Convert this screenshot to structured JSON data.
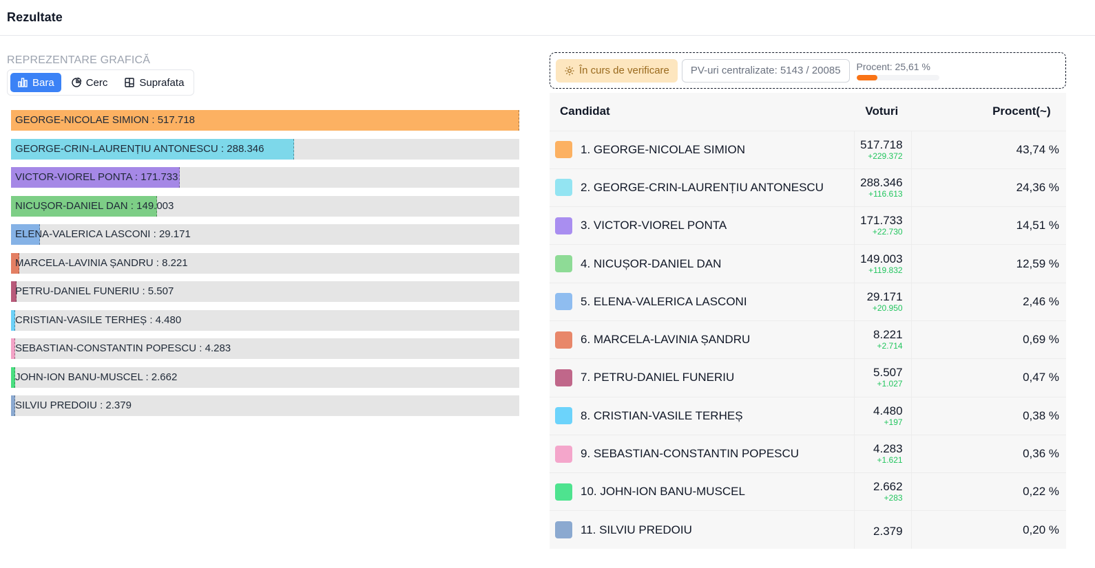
{
  "header": {
    "title": "Rezultate"
  },
  "chart_panel": {
    "section_label": "REPREZENTARE GRAFICĂ",
    "views": [
      {
        "label": "Bara",
        "icon": "bar-chart-icon",
        "active": true
      },
      {
        "label": "Cerc",
        "icon": "pie-chart-icon",
        "active": false
      },
      {
        "label": "Suprafata",
        "icon": "treemap-icon",
        "active": false
      }
    ]
  },
  "chart_data": {
    "type": "bar",
    "orientation": "horizontal",
    "title": "",
    "categories": [
      "GEORGE-NICOLAE SIMION",
      "GEORGE-CRIN-LAURENȚIU ANTONESCU",
      "VICTOR-VIOREL PONTA",
      "NICUȘOR-DANIEL DAN",
      "ELENA-VALERICA LASCONI",
      "MARCELA-LAVINIA ȘANDRU",
      "PETRU-DANIEL FUNERIU",
      "CRISTIAN-VASILE TERHEȘ",
      "SEBASTIAN-CONSTANTIN POPESCU",
      "JOHN-ION BANU-MUSCEL",
      "SILVIU PREDOIU"
    ],
    "values": [
      517718,
      288346,
      171733,
      149003,
      29171,
      8221,
      5507,
      4480,
      4283,
      2662,
      2379
    ],
    "labels": [
      "GEORGE-NICOLAE SIMION : 517.718",
      "GEORGE-CRIN-LAURENȚIU ANTONESCU : 288.346",
      "VICTOR-VIOREL PONTA : 171.733",
      "NICUȘOR-DANIEL DAN : 149.003",
      "ELENA-VALERICA LASCONI : 29.171",
      "MARCELA-LAVINIA ȘANDRU : 8.221",
      "PETRU-DANIEL FUNERIU : 5.507",
      "CRISTIAN-VASILE TERHEȘ : 4.480",
      "SEBASTIAN-CONSTANTIN POPESCU : 4.283",
      "JOHN-ION BANU-MUSCEL : 2.662",
      "SILVIU PREDOIU : 2.379"
    ],
    "colors": [
      "#fcb162",
      "#7dd8ea",
      "#a588e6",
      "#7dce86",
      "#85b2e6",
      "#e37f63",
      "#b85a7a",
      "#6cd0f7",
      "#f2a3c6",
      "#4ade80",
      "#8ba9d0"
    ],
    "xlim": [
      0,
      517718
    ],
    "grid": false
  },
  "status": {
    "verification_label": "În curs de verificare",
    "pv_label": "PV-uri centralizate: 5143 / 20085",
    "percent_label": "Procent: 25,61 %",
    "percent_value": 25.61
  },
  "table": {
    "headers": {
      "candidate": "Candidat",
      "votes": "Voturi",
      "percent": "Procent(~)"
    },
    "rows": [
      {
        "name": "1. GEORGE-NICOLAE SIMION",
        "votes": "517.718",
        "delta": "+229.372",
        "pct": "43,74 %",
        "color": "#fcb162"
      },
      {
        "name": "2. GEORGE-CRIN-LAURENȚIU ANTONESCU",
        "votes": "288.346",
        "delta": "+116.613",
        "pct": "24,36 %",
        "color": "#93e4f2"
      },
      {
        "name": "3. VICTOR-VIOREL PONTA",
        "votes": "171.733",
        "delta": "+22.730",
        "pct": "14,51 %",
        "color": "#a98ef0"
      },
      {
        "name": "4. NICUȘOR-DANIEL DAN",
        "votes": "149.003",
        "delta": "+119.832",
        "pct": "12,59 %",
        "color": "#8edb96"
      },
      {
        "name": "5. ELENA-VALERICA LASCONI",
        "votes": "29.171",
        "delta": "+20.950",
        "pct": "2,46 %",
        "color": "#8fbdf0"
      },
      {
        "name": "6. MARCELA-LAVINIA ȘANDRU",
        "votes": "8.221",
        "delta": "+2.714",
        "pct": "0,69 %",
        "color": "#e8876a"
      },
      {
        "name": "7. PETRU-DANIEL FUNERIU",
        "votes": "5.507",
        "delta": "+1.027",
        "pct": "0,47 %",
        "color": "#c0678a"
      },
      {
        "name": "8. CRISTIAN-VASILE TERHEȘ",
        "votes": "4.480",
        "delta": "+197",
        "pct": "0,38 %",
        "color": "#6cd3fb"
      },
      {
        "name": "9. SEBASTIAN-CONSTANTIN POPESCU",
        "votes": "4.283",
        "delta": "+1.621",
        "pct": "0,36 %",
        "color": "#f4a6cb"
      },
      {
        "name": "10. JOHN-ION BANU-MUSCEL",
        "votes": "2.662",
        "delta": "+283",
        "pct": "0,22 %",
        "color": "#4ee38f"
      },
      {
        "name": "11. SILVIU PREDOIU",
        "votes": "2.379",
        "delta": "",
        "pct": "0,20 %",
        "color": "#8ba9d0"
      }
    ]
  }
}
